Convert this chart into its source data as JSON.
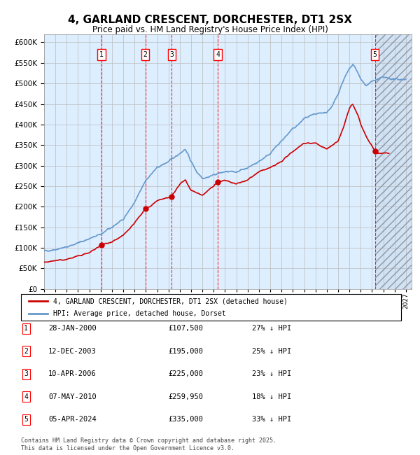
{
  "title": "4, GARLAND CRESCENT, DORCHESTER, DT1 2SX",
  "subtitle": "Price paid vs. HM Land Registry's House Price Index (HPI)",
  "ylim": [
    0,
    620000
  ],
  "yticks": [
    0,
    50000,
    100000,
    150000,
    200000,
    250000,
    300000,
    350000,
    400000,
    450000,
    500000,
    550000,
    600000
  ],
  "xlim_start": 1995.0,
  "xlim_end": 2027.5,
  "sales": [
    {
      "label": "1",
      "date": "28-JAN-2000",
      "year": 2000.07,
      "price": 107500,
      "pct": "27%",
      "dir": "↓"
    },
    {
      "label": "2",
      "date": "12-DEC-2003",
      "year": 2003.95,
      "price": 195000,
      "pct": "25%",
      "dir": "↓"
    },
    {
      "label": "3",
      "date": "10-APR-2006",
      "year": 2006.28,
      "price": 225000,
      "pct": "23%",
      "dir": "↓"
    },
    {
      "label": "4",
      "date": "07-MAY-2010",
      "year": 2010.35,
      "price": 259950,
      "pct": "18%",
      "dir": "↓"
    },
    {
      "label": "5",
      "date": "05-APR-2024",
      "year": 2024.26,
      "price": 335000,
      "pct": "33%",
      "dir": "↓"
    }
  ],
  "legend_entries": [
    "4, GARLAND CRESCENT, DORCHESTER, DT1 2SX (detached house)",
    "HPI: Average price, detached house, Dorset"
  ],
  "footer": "Contains HM Land Registry data © Crown copyright and database right 2025.\nThis data is licensed under the Open Government Licence v3.0.",
  "red_line_color": "#cc0000",
  "blue_line_color": "#6699cc",
  "chart_bg_color": "#ddeeff",
  "grid_color": "#bbbbbb",
  "hatch_color": "#aabbcc",
  "future_start": 2024.26
}
